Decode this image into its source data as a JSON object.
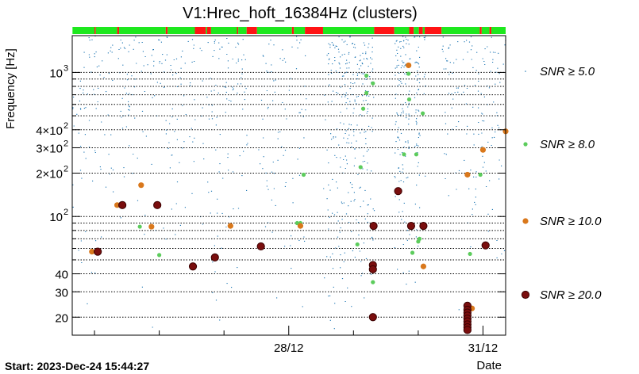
{
  "chart_data": {
    "type": "scatter",
    "title": "V1:Hrec_hoft_16384Hz (clusters)",
    "ylabel": "Frequency [Hz]",
    "xlabel": "Date",
    "yscale": "log",
    "ylim": [
      15,
      1800
    ],
    "xlim": [
      24.6561,
      31.35
    ],
    "x_unit": "days in December 2023",
    "start_text": "Start: 2023-Dec-24 15:44:27",
    "y_ticks": [
      {
        "value": 20,
        "label": "20"
      },
      {
        "value": 30,
        "label": "30"
      },
      {
        "value": 40,
        "label": "40"
      },
      {
        "value": 100,
        "label": "10",
        "exp": "2"
      },
      {
        "value": 200,
        "label": "2×10",
        "exp": "2"
      },
      {
        "value": 300,
        "label": "3×10",
        "exp": "2"
      },
      {
        "value": 400,
        "label": "4×10",
        "exp": "2"
      },
      {
        "value": 1000,
        "label": "10",
        "exp": "3"
      }
    ],
    "y_minor_ticks": [
      50,
      60,
      70,
      80,
      90,
      500,
      600,
      700,
      800,
      900
    ],
    "x_ticks": [
      {
        "value": 28,
        "label": "28/12"
      },
      {
        "value": 31,
        "label": "31/12"
      }
    ],
    "x_minor_ticks": [
      25,
      26,
      27,
      29,
      30
    ],
    "grid": true,
    "legend": [
      {
        "label": "SNR ≥ 5.0",
        "color": "#1f77b4"
      },
      {
        "label": "SNR ≥ 8.0",
        "color": "#5ccc5c"
      },
      {
        "label": "SNR ≥ 10.0",
        "color": "#d9781c"
      },
      {
        "label": "SNR ≥ 20.0",
        "color": "#7a0e0e"
      }
    ],
    "segments": [
      {
        "start": 24.66,
        "end": 25.0,
        "state": "on"
      },
      {
        "start": 25.0,
        "end": 25.02,
        "state": "off"
      },
      {
        "start": 25.02,
        "end": 25.35,
        "state": "on"
      },
      {
        "start": 25.35,
        "end": 25.38,
        "state": "off"
      },
      {
        "start": 25.38,
        "end": 26.1,
        "state": "on"
      },
      {
        "start": 26.1,
        "end": 26.13,
        "state": "off"
      },
      {
        "start": 26.13,
        "end": 26.55,
        "state": "on"
      },
      {
        "start": 26.55,
        "end": 26.72,
        "state": "off"
      },
      {
        "start": 26.72,
        "end": 26.74,
        "state": "on"
      },
      {
        "start": 26.74,
        "end": 26.8,
        "state": "off"
      },
      {
        "start": 26.8,
        "end": 27.2,
        "state": "on"
      },
      {
        "start": 27.2,
        "end": 27.22,
        "state": "off"
      },
      {
        "start": 27.22,
        "end": 27.35,
        "state": "on"
      },
      {
        "start": 27.35,
        "end": 27.51,
        "state": "off"
      },
      {
        "start": 27.51,
        "end": 28.05,
        "state": "on"
      },
      {
        "start": 28.05,
        "end": 28.08,
        "state": "off"
      },
      {
        "start": 28.08,
        "end": 28.25,
        "state": "on"
      },
      {
        "start": 28.25,
        "end": 28.53,
        "state": "off"
      },
      {
        "start": 28.53,
        "end": 29.32,
        "state": "on"
      },
      {
        "start": 29.32,
        "end": 29.63,
        "state": "off"
      },
      {
        "start": 29.63,
        "end": 29.86,
        "state": "on"
      },
      {
        "start": 29.86,
        "end": 29.93,
        "state": "off"
      },
      {
        "start": 29.93,
        "end": 30.01,
        "state": "on"
      },
      {
        "start": 30.01,
        "end": 30.07,
        "state": "off"
      },
      {
        "start": 30.07,
        "end": 30.1,
        "state": "on"
      },
      {
        "start": 30.1,
        "end": 30.36,
        "state": "off"
      },
      {
        "start": 30.36,
        "end": 30.95,
        "state": "on"
      },
      {
        "start": 30.95,
        "end": 30.98,
        "state": "off"
      },
      {
        "start": 30.98,
        "end": 31.1,
        "state": "on"
      },
      {
        "start": 31.1,
        "end": 31.13,
        "state": "off"
      },
      {
        "start": 31.13,
        "end": 31.35,
        "state": "on"
      }
    ],
    "gaps": [
      [
        26.55,
        26.62
      ],
      [
        26.7,
        26.73
      ],
      [
        27.36,
        27.52
      ],
      [
        28.27,
        28.53
      ],
      [
        29.32,
        29.63
      ],
      [
        29.87,
        29.93
      ],
      [
        30.02,
        30.07
      ],
      [
        30.11,
        30.36
      ],
      [
        25.31,
        25.36
      ],
      [
        26.28,
        26.3
      ],
      [
        28.09,
        28.11
      ],
      [
        30.93,
        30.96
      ]
    ],
    "dense_bands": [
      [
        28.6,
        29.3,
        0.55
      ],
      [
        29.63,
        29.87,
        0.9
      ],
      [
        29.95,
        30.02,
        0.8
      ],
      [
        30.08,
        30.11,
        0.5
      ]
    ],
    "series": [
      {
        "name": "SNR ≥ 8.0",
        "points": [
          [
            29.2,
            950
          ],
          [
            29.2,
            720
          ],
          [
            29.15,
            560
          ],
          [
            29.3,
            840
          ],
          [
            29.85,
            980
          ],
          [
            29.86,
            650
          ],
          [
            30.07,
            520
          ],
          [
            29.97,
            270
          ],
          [
            29.11,
            220
          ],
          [
            28.23,
            195
          ],
          [
            28.18,
            90
          ],
          [
            28.13,
            90
          ],
          [
            29.06,
            64
          ],
          [
            30.0,
            67
          ],
          [
            30.02,
            70
          ],
          [
            29.91,
            56
          ],
          [
            30.8,
            55
          ],
          [
            30.96,
            195
          ],
          [
            29.3,
            35
          ],
          [
            26.0,
            54
          ],
          [
            25.7,
            85
          ],
          [
            29.78,
            270
          ]
        ]
      },
      {
        "name": "SNR ≥ 10.0",
        "points": [
          [
            24.96,
            57
          ],
          [
            25.35,
            120
          ],
          [
            25.72,
            165
          ],
          [
            25.88,
            85
          ],
          [
            27.1,
            86
          ],
          [
            28.18,
            86
          ],
          [
            29.85,
            1120
          ],
          [
            30.08,
            45
          ],
          [
            30.76,
            195
          ],
          [
            31.0,
            290
          ],
          [
            31.35,
            390
          ],
          [
            30.83,
            23
          ]
        ]
      },
      {
        "name": "SNR ≥ 20.0",
        "points": [
          [
            25.05,
            57
          ],
          [
            25.43,
            120
          ],
          [
            25.97,
            120
          ],
          [
            26.52,
            45
          ],
          [
            26.86,
            52
          ],
          [
            27.57,
            62
          ],
          [
            29.31,
            86
          ],
          [
            29.69,
            150
          ],
          [
            29.89,
            86
          ],
          [
            30.08,
            86
          ],
          [
            29.3,
            46
          ],
          [
            29.3,
            43
          ],
          [
            29.3,
            20
          ],
          [
            31.04,
            63
          ],
          [
            30.76,
            24
          ],
          [
            30.76,
            22.5
          ],
          [
            30.76,
            21.5
          ],
          [
            30.76,
            20.5
          ],
          [
            30.76,
            19.5
          ],
          [
            30.76,
            18.7
          ],
          [
            30.76,
            17.8
          ],
          [
            30.76,
            17.0
          ],
          [
            30.76,
            16.3
          ]
        ]
      }
    ]
  }
}
